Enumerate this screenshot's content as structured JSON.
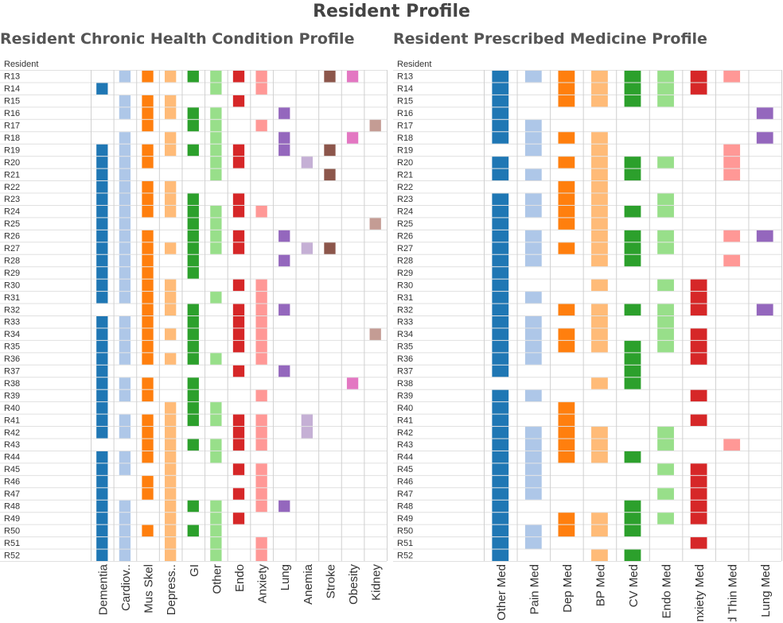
{
  "page_title": "Resident Profile",
  "chart_data": [
    {
      "type": "heatmap",
      "title": "Resident Chronic Health Condition Profile",
      "row_header": "Resident",
      "rows": [
        "R13",
        "R14",
        "R15",
        "R16",
        "R17",
        "R18",
        "R19",
        "R20",
        "R21",
        "R22",
        "R23",
        "R24",
        "R25",
        "R26",
        "R27",
        "R28",
        "R29",
        "R30",
        "R31",
        "R32",
        "R33",
        "R34",
        "R35",
        "R36",
        "R37",
        "R38",
        "R39",
        "R40",
        "R41",
        "R42",
        "R43",
        "R44",
        "R45",
        "R46",
        "R47",
        "R48",
        "R49",
        "R50",
        "R51",
        "R52"
      ],
      "columns": [
        "Dementia",
        "Cardiov..",
        "Mus Skel",
        "Depress..",
        "GI",
        "Other",
        "Endo",
        "Anxiety",
        "Lung",
        "Anemia",
        "Stroke",
        "Obesity",
        "Kidney"
      ],
      "column_colors": [
        "#1f77b4",
        "#aec7e8",
        "#ff7f0e",
        "#ffbb78",
        "#2ca02c",
        "#98df8a",
        "#d62728",
        "#ff9896",
        "#9467bd",
        "#c5b0d5",
        "#8c564b",
        "#e377c2",
        "#c49c94"
      ],
      "cells": {
        "Dementia": [
          0,
          1,
          0,
          0,
          0,
          0,
          1,
          1,
          1,
          1,
          1,
          1,
          1,
          1,
          1,
          1,
          1,
          1,
          1,
          0,
          1,
          1,
          1,
          1,
          1,
          1,
          1,
          1,
          1,
          1,
          0,
          1,
          1,
          1,
          1,
          1,
          1,
          1,
          1,
          1
        ],
        "Cardiov..": [
          1,
          0,
          1,
          1,
          0,
          1,
          1,
          1,
          1,
          1,
          1,
          1,
          1,
          1,
          1,
          1,
          1,
          1,
          1,
          0,
          1,
          1,
          1,
          1,
          0,
          1,
          1,
          0,
          1,
          1,
          0,
          1,
          1,
          0,
          0,
          1,
          1,
          1,
          1,
          1
        ],
        "Mus Skel": [
          1,
          0,
          1,
          1,
          1,
          0,
          1,
          1,
          0,
          1,
          1,
          1,
          0,
          1,
          1,
          1,
          1,
          1,
          1,
          1,
          1,
          1,
          1,
          1,
          0,
          1,
          1,
          0,
          1,
          1,
          1,
          1,
          0,
          1,
          1,
          0,
          0,
          1,
          0,
          0
        ],
        "Depress..": [
          1,
          0,
          1,
          1,
          0,
          1,
          1,
          0,
          0,
          1,
          1,
          1,
          0,
          0,
          1,
          0,
          0,
          1,
          1,
          1,
          0,
          1,
          0,
          1,
          0,
          0,
          0,
          1,
          1,
          1,
          1,
          1,
          1,
          1,
          1,
          1,
          1,
          1,
          1,
          1
        ],
        "GI": [
          1,
          0,
          0,
          1,
          1,
          0,
          1,
          0,
          0,
          0,
          1,
          1,
          1,
          1,
          1,
          1,
          1,
          0,
          0,
          1,
          1,
          1,
          1,
          1,
          0,
          1,
          1,
          1,
          1,
          0,
          1,
          0,
          0,
          0,
          0,
          1,
          0,
          1,
          0,
          0
        ],
        "Other": [
          1,
          1,
          0,
          1,
          1,
          1,
          1,
          1,
          1,
          0,
          0,
          1,
          1,
          1,
          1,
          0,
          0,
          0,
          1,
          0,
          0,
          0,
          0,
          1,
          0,
          0,
          0,
          1,
          1,
          0,
          1,
          1,
          0,
          0,
          0,
          1,
          1,
          1,
          1,
          1
        ],
        "Endo": [
          1,
          0,
          1,
          0,
          0,
          0,
          1,
          1,
          0,
          0,
          1,
          1,
          0,
          1,
          1,
          0,
          0,
          1,
          0,
          1,
          1,
          1,
          1,
          0,
          1,
          0,
          0,
          0,
          1,
          1,
          1,
          0,
          1,
          0,
          1,
          0,
          1,
          0,
          0,
          0
        ],
        "Anxiety": [
          1,
          1,
          0,
          0,
          1,
          0,
          0,
          0,
          0,
          0,
          0,
          1,
          0,
          0,
          0,
          0,
          0,
          1,
          1,
          1,
          1,
          1,
          1,
          1,
          0,
          0,
          1,
          0,
          1,
          1,
          1,
          0,
          1,
          1,
          1,
          1,
          0,
          0,
          1,
          1
        ],
        "Lung": [
          0,
          0,
          0,
          1,
          0,
          1,
          1,
          0,
          0,
          0,
          0,
          0,
          0,
          1,
          0,
          1,
          0,
          0,
          0,
          1,
          0,
          0,
          0,
          0,
          1,
          0,
          0,
          0,
          0,
          0,
          0,
          0,
          0,
          0,
          0,
          1,
          0,
          0,
          0,
          0
        ],
        "Anemia": [
          0,
          0,
          0,
          0,
          0,
          0,
          0,
          1,
          0,
          0,
          0,
          0,
          0,
          0,
          1,
          0,
          0,
          0,
          0,
          0,
          0,
          0,
          0,
          0,
          0,
          0,
          0,
          0,
          1,
          1,
          0,
          0,
          0,
          0,
          0,
          0,
          0,
          0,
          0,
          0
        ],
        "Stroke": [
          1,
          0,
          0,
          0,
          0,
          0,
          1,
          0,
          1,
          0,
          0,
          0,
          0,
          0,
          1,
          0,
          0,
          0,
          0,
          0,
          0,
          0,
          0,
          0,
          0,
          0,
          0,
          0,
          0,
          0,
          0,
          0,
          0,
          0,
          0,
          0,
          0,
          0,
          0,
          0
        ],
        "Obesity": [
          1,
          0,
          0,
          0,
          0,
          1,
          0,
          0,
          0,
          0,
          0,
          0,
          0,
          0,
          0,
          0,
          0,
          0,
          0,
          0,
          0,
          0,
          0,
          0,
          0,
          1,
          0,
          0,
          0,
          0,
          0,
          0,
          0,
          0,
          0,
          0,
          0,
          0,
          0,
          0
        ],
        "Kidney": [
          0,
          0,
          0,
          0,
          1,
          0,
          0,
          0,
          0,
          0,
          0,
          0,
          1,
          0,
          0,
          0,
          0,
          0,
          0,
          0,
          0,
          1,
          0,
          0,
          0,
          0,
          0,
          0,
          0,
          0,
          0,
          0,
          0,
          0,
          0,
          0,
          0,
          0,
          0,
          0
        ]
      }
    },
    {
      "type": "heatmap",
      "title": "Resident Prescribed Medicine Profile",
      "row_header": "Resident",
      "rows": [
        "R13",
        "R14",
        "R15",
        "R16",
        "R17",
        "R18",
        "R19",
        "R20",
        "R21",
        "R22",
        "R23",
        "R24",
        "R25",
        "R26",
        "R27",
        "R28",
        "R29",
        "R30",
        "R31",
        "R32",
        "R33",
        "R34",
        "R35",
        "R36",
        "R37",
        "R38",
        "R39",
        "R40",
        "R41",
        "R42",
        "R43",
        "R44",
        "R45",
        "R46",
        "R47",
        "R48",
        "R49",
        "R50",
        "R51",
        "R52"
      ],
      "columns": [
        "Other Med",
        "Pain Med",
        "Dep Med",
        "BP Med",
        "CV Med",
        "Endo Med",
        "Anxiety Med",
        "Bld Thin Med",
        "Lung Med"
      ],
      "column_colors": [
        "#1f77b4",
        "#aec7e8",
        "#ff7f0e",
        "#ffbb78",
        "#2ca02c",
        "#98df8a",
        "#d62728",
        "#ff9896",
        "#9467bd"
      ],
      "cells": {
        "Other Med": [
          1,
          1,
          1,
          1,
          1,
          1,
          0,
          1,
          1,
          0,
          1,
          1,
          1,
          1,
          1,
          1,
          1,
          1,
          1,
          1,
          1,
          1,
          1,
          1,
          1,
          0,
          1,
          1,
          1,
          1,
          1,
          1,
          1,
          1,
          1,
          1,
          1,
          1,
          1,
          1
        ],
        "Pain Med": [
          1,
          0,
          0,
          0,
          1,
          1,
          1,
          0,
          1,
          0,
          1,
          1,
          0,
          1,
          1,
          1,
          0,
          0,
          1,
          0,
          1,
          1,
          1,
          1,
          0,
          0,
          1,
          0,
          0,
          1,
          1,
          1,
          1,
          1,
          1,
          0,
          0,
          1,
          1,
          0
        ],
        "Dep Med": [
          1,
          1,
          1,
          0,
          0,
          1,
          0,
          1,
          0,
          1,
          1,
          1,
          1,
          0,
          1,
          0,
          0,
          0,
          0,
          1,
          0,
          1,
          1,
          0,
          0,
          0,
          0,
          1,
          1,
          1,
          1,
          1,
          0,
          0,
          0,
          0,
          1,
          1,
          0,
          0
        ],
        "BP Med": [
          1,
          1,
          1,
          0,
          0,
          1,
          1,
          1,
          1,
          1,
          1,
          1,
          1,
          1,
          1,
          1,
          0,
          1,
          0,
          1,
          1,
          1,
          1,
          0,
          0,
          1,
          0,
          0,
          0,
          1,
          1,
          1,
          0,
          0,
          0,
          0,
          1,
          1,
          0,
          1
        ],
        "CV Med": [
          1,
          1,
          1,
          0,
          0,
          0,
          0,
          1,
          1,
          0,
          0,
          1,
          0,
          1,
          1,
          1,
          0,
          0,
          0,
          1,
          0,
          0,
          1,
          1,
          1,
          1,
          0,
          0,
          0,
          0,
          0,
          1,
          0,
          0,
          0,
          1,
          1,
          1,
          0,
          1
        ],
        "Endo Med": [
          1,
          1,
          1,
          0,
          0,
          0,
          0,
          1,
          0,
          0,
          1,
          1,
          0,
          1,
          1,
          0,
          0,
          1,
          0,
          1,
          1,
          1,
          1,
          0,
          0,
          0,
          0,
          0,
          0,
          1,
          1,
          0,
          1,
          0,
          1,
          0,
          1,
          0,
          0,
          0
        ],
        "Anxiety Med": [
          1,
          1,
          0,
          0,
          0,
          0,
          0,
          0,
          0,
          0,
          0,
          0,
          0,
          0,
          0,
          0,
          0,
          1,
          1,
          1,
          0,
          1,
          1,
          1,
          0,
          0,
          1,
          0,
          1,
          0,
          0,
          0,
          1,
          1,
          1,
          1,
          1,
          0,
          1,
          0
        ],
        "Bld Thin Med": [
          1,
          0,
          0,
          0,
          0,
          0,
          1,
          1,
          1,
          0,
          0,
          0,
          0,
          1,
          0,
          1,
          0,
          0,
          0,
          0,
          0,
          0,
          0,
          0,
          0,
          0,
          0,
          0,
          0,
          0,
          1,
          0,
          0,
          0,
          0,
          0,
          0,
          0,
          0,
          0
        ],
        "Lung Med": [
          0,
          0,
          0,
          1,
          0,
          1,
          0,
          0,
          0,
          0,
          0,
          0,
          0,
          1,
          0,
          0,
          0,
          0,
          0,
          1,
          0,
          0,
          0,
          0,
          0,
          0,
          0,
          0,
          0,
          0,
          0,
          0,
          0,
          0,
          0,
          0,
          0,
          0,
          0,
          0
        ]
      }
    }
  ]
}
